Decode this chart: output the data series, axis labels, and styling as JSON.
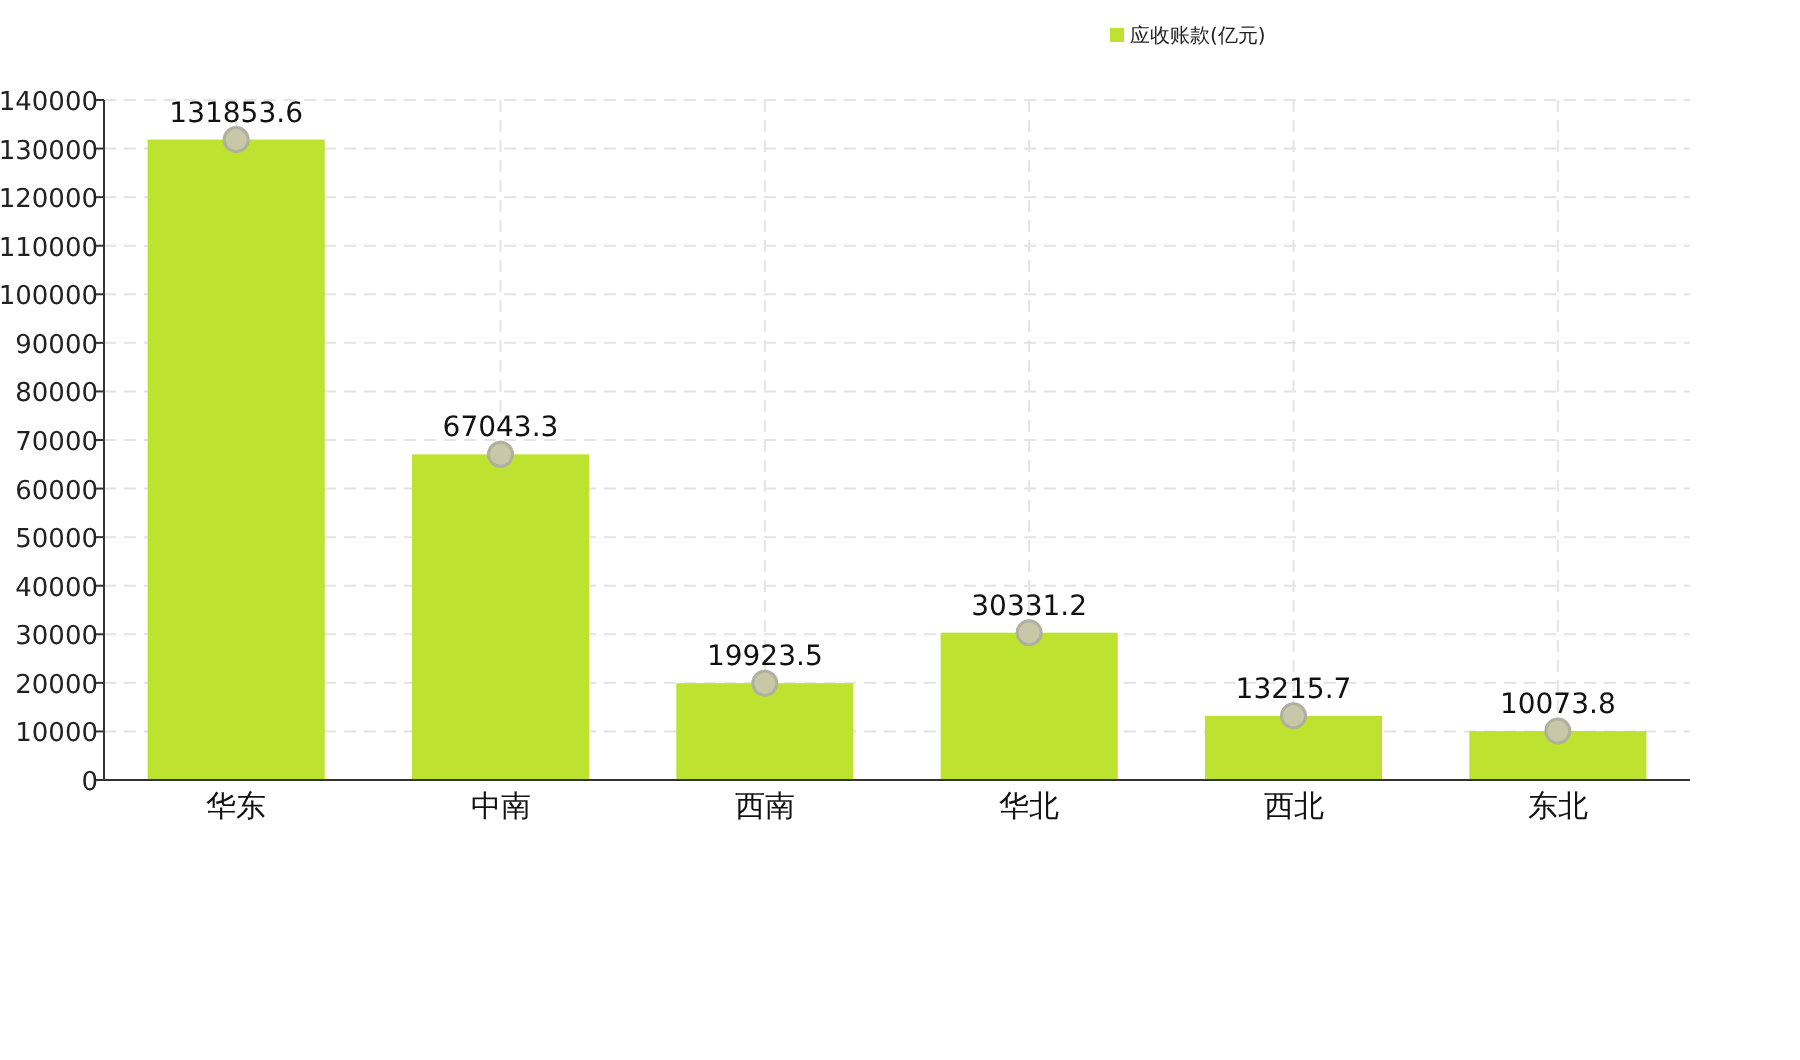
{
  "chart_data": {
    "type": "bar",
    "categories": [
      "华东",
      "中南",
      "西南",
      "华北",
      "西北",
      "东北"
    ],
    "series": [
      {
        "name": "应收账款(亿元)",
        "color": "#bde22f",
        "values": [
          131853.6,
          67043.3,
          19923.5,
          30331.2,
          13215.7,
          10073.8
        ]
      },
      {
        "type": "scatter",
        "color": "#c8c8a8",
        "marker": "circle",
        "x": [
          "华东",
          "中南",
          "西南",
          "华北",
          "西北",
          "东北"
        ],
        "values": [
          131853.6,
          67043.3,
          19923.5,
          30331.2,
          13215.7,
          10073.8
        ],
        "value_labels": [
          "131853.6",
          "67043.3",
          "19923.5",
          "30331.2",
          "13215.7",
          "10073.8"
        ]
      }
    ],
    "ylim": [
      0,
      140000
    ],
    "yticks": [
      0,
      10000,
      20000,
      30000,
      40000,
      50000,
      60000,
      70000,
      80000,
      90000,
      100000,
      110000,
      120000,
      130000,
      140000
    ],
    "grid": true,
    "legend": "top right"
  }
}
